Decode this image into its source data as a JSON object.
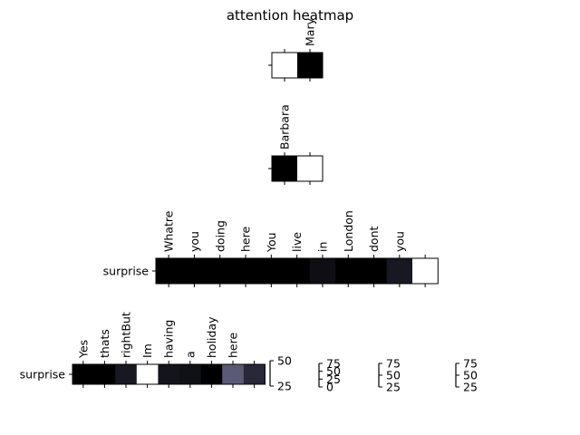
{
  "title": "attention heatmap",
  "chart_data": [
    {
      "type": "heatmap",
      "row_labels": [
        ""
      ],
      "x_labels": [
        "",
        "Mary"
      ],
      "values": [
        [
          1.0,
          0.0
        ]
      ]
    },
    {
      "type": "heatmap",
      "row_labels": [
        ""
      ],
      "x_labels": [
        "Barbara",
        ""
      ],
      "values": [
        [
          0.0,
          1.0
        ]
      ]
    },
    {
      "type": "heatmap",
      "row_labels": [
        "surprise"
      ],
      "x_labels": [
        "Whatre",
        "you",
        "doing",
        "here",
        "You",
        "live",
        "in",
        "London",
        "dont",
        "you",
        ""
      ],
      "values": [
        [
          0.0,
          0.0,
          0.0,
          0.0,
          0.0,
          0.0,
          0.07,
          0.0,
          0.0,
          0.12,
          1.0
        ]
      ]
    },
    {
      "type": "heatmap",
      "row_labels": [
        "surprise"
      ],
      "x_labels": [
        "Yes",
        "thats",
        "rightBut",
        "Im",
        "having",
        "a",
        "holiday",
        "here",
        ""
      ],
      "values": [
        [
          0.0,
          0.0,
          0.12,
          1.0,
          0.1,
          0.08,
          0.0,
          0.42,
          0.2
        ]
      ]
    }
  ],
  "colorbars": [
    {
      "ticks": [
        "50",
        "25"
      ]
    },
    {
      "ticks": [
        "75",
        "50",
        "25",
        "0"
      ]
    },
    {
      "ticks": [
        "75",
        "50",
        "25"
      ]
    },
    {
      "ticks": [
        "75",
        "50",
        "25"
      ]
    }
  ],
  "colormap": {
    "low": "#000000",
    "high": "#ffffff",
    "tint": "#4a4a6a"
  }
}
